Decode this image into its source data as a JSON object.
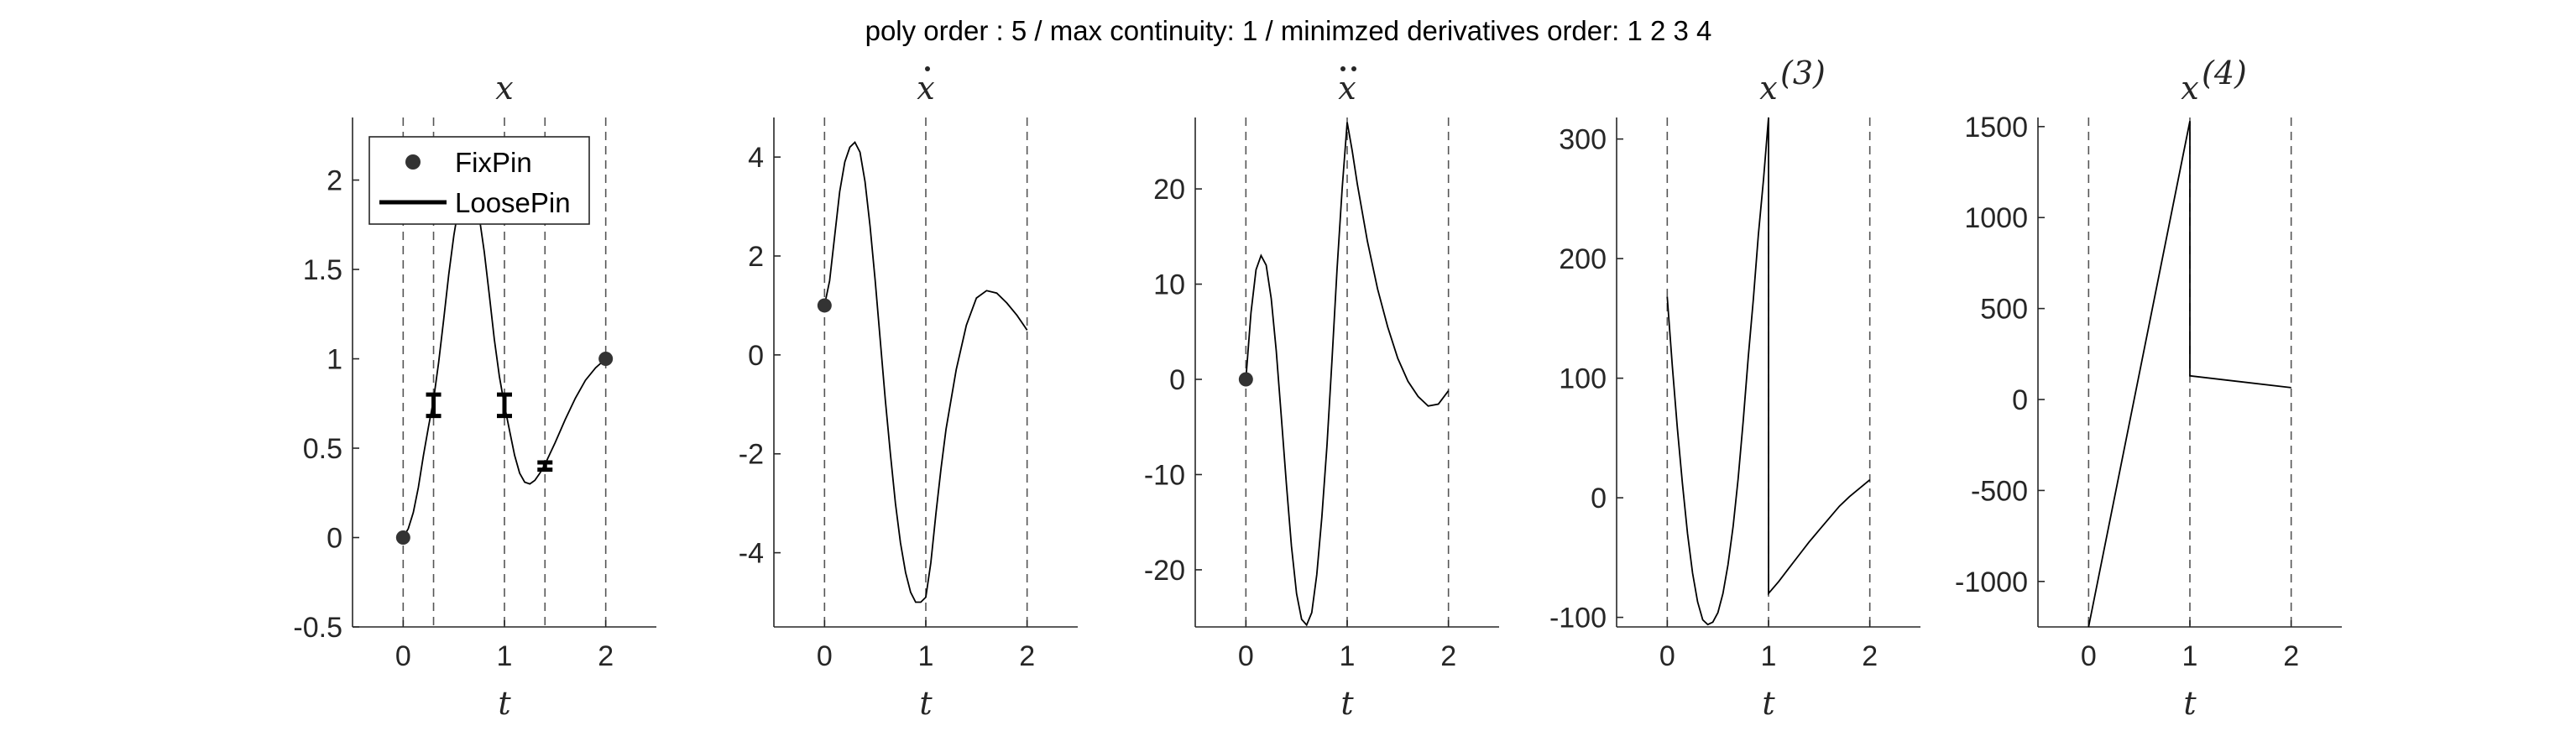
{
  "figure": {
    "suptitle": "poly order : 5 / max continuity: 1 / minimzed derivatives order: 1  2  3  4"
  },
  "legend": {
    "entries": [
      {
        "label": "FixPin",
        "marker": "dot"
      },
      {
        "label": "LoosePin",
        "marker": "line"
      }
    ]
  },
  "colors": {
    "curve": "#000000",
    "marker": "#333333",
    "axis": "#262626",
    "guide_line": "#555555"
  },
  "chart_data": [
    {
      "type": "line",
      "title": "x",
      "title_sup": "",
      "title_accent": "",
      "xlabel": "t",
      "xlim": [
        -0.5,
        2.5
      ],
      "ylim": [
        -0.5,
        2.35
      ],
      "xticks": [
        0,
        1,
        2
      ],
      "xtick_labels": [
        "0",
        "1",
        "2"
      ],
      "yticks": [
        -0.5,
        0,
        0.5,
        1,
        1.5,
        2
      ],
      "ytick_labels": [
        "-0.5",
        "0",
        "0.5",
        "1",
        "1.5",
        "2"
      ],
      "vlines": [
        0,
        0.3,
        1,
        1.4,
        2
      ],
      "series": [
        {
          "x": [
            0,
            0.05,
            0.1,
            0.15,
            0.2,
            0.25,
            0.3,
            0.35,
            0.4,
            0.45,
            0.5,
            0.55,
            0.6,
            0.65,
            0.7,
            0.75,
            0.8,
            0.85,
            0.9,
            0.95,
            1.0,
            1.05,
            1.1,
            1.15,
            1.2,
            1.25,
            1.3,
            1.35,
            1.4,
            1.5,
            1.6,
            1.7,
            1.8,
            1.9,
            2.0
          ],
          "y": [
            0,
            0.05,
            0.14,
            0.28,
            0.46,
            0.62,
            0.77,
            0.98,
            1.22,
            1.47,
            1.69,
            1.86,
            1.97,
            2.0,
            1.94,
            1.8,
            1.6,
            1.36,
            1.11,
            0.9,
            0.74,
            0.6,
            0.46,
            0.36,
            0.31,
            0.3,
            0.32,
            0.36,
            0.41,
            0.53,
            0.66,
            0.78,
            0.88,
            0.95,
            1.0
          ]
        }
      ],
      "fix_pins": [
        {
          "x": 0,
          "y": 0
        },
        {
          "x": 2,
          "y": 1
        }
      ],
      "loose_pins": [
        {
          "x": 0.3,
          "low": 0.68,
          "high": 0.8
        },
        {
          "x": 1.0,
          "low": 0.68,
          "high": 0.8
        },
        {
          "x": 1.4,
          "low": 0.38,
          "high": 0.42
        }
      ]
    },
    {
      "type": "line",
      "title": "x",
      "title_sup": "",
      "title_accent": "dot",
      "xlabel": "t",
      "xlim": [
        -0.5,
        2.5
      ],
      "ylim": [
        -5.5,
        4.8
      ],
      "xticks": [
        0,
        1,
        2
      ],
      "xtick_labels": [
        "0",
        "1",
        "2"
      ],
      "yticks": [
        -4,
        -2,
        0,
        2,
        4
      ],
      "ytick_labels": [
        "-4",
        "-2",
        "0",
        "2",
        "4"
      ],
      "vlines": [
        0,
        1,
        2
      ],
      "series": [
        {
          "x": [
            0,
            0.05,
            0.1,
            0.15,
            0.2,
            0.25,
            0.3,
            0.35,
            0.4,
            0.45,
            0.5,
            0.55,
            0.6,
            0.65,
            0.7,
            0.75,
            0.8,
            0.85,
            0.9,
            0.95,
            1.0,
            1.05,
            1.1,
            1.15,
            1.2,
            1.3,
            1.4,
            1.5,
            1.6,
            1.7,
            1.8,
            1.9,
            2.0
          ],
          "y": [
            1.0,
            1.5,
            2.4,
            3.3,
            3.9,
            4.2,
            4.3,
            4.1,
            3.5,
            2.6,
            1.5,
            0.3,
            -0.9,
            -2.0,
            -3.0,
            -3.8,
            -4.4,
            -4.8,
            -5.0,
            -5.0,
            -4.9,
            -4.2,
            -3.2,
            -2.3,
            -1.5,
            -0.3,
            0.6,
            1.15,
            1.3,
            1.25,
            1.05,
            0.8,
            0.5
          ]
        }
      ],
      "fix_pins": [
        {
          "x": 0,
          "y": 1.0
        }
      ],
      "loose_pins": []
    },
    {
      "type": "line",
      "title": "x",
      "title_sup": "",
      "title_accent": "ddot",
      "xlabel": "t",
      "xlim": [
        -0.5,
        2.5
      ],
      "ylim": [
        -26,
        27.5
      ],
      "xticks": [
        0,
        1,
        2
      ],
      "xtick_labels": [
        "0",
        "1",
        "2"
      ],
      "yticks": [
        -20,
        -10,
        0,
        10,
        20
      ],
      "ytick_labels": [
        "-20",
        "-10",
        "0",
        "10",
        "20"
      ],
      "vlines": [
        0,
        1,
        2
      ],
      "series": [
        {
          "x": [
            0,
            0.05,
            0.1,
            0.15,
            0.2,
            0.25,
            0.3,
            0.35,
            0.4,
            0.45,
            0.5,
            0.55,
            0.6,
            0.65,
            0.7,
            0.75,
            0.8,
            0.85,
            0.9,
            0.95,
            1.0,
            1.0,
            1.05,
            1.1,
            1.2,
            1.3,
            1.4,
            1.5,
            1.6,
            1.7,
            1.8,
            1.9,
            2.0
          ],
          "y": [
            0,
            7,
            11.5,
            13,
            12,
            8.5,
            3,
            -4,
            -11,
            -17.5,
            -22.5,
            -25.2,
            -25.8,
            -24.5,
            -20.5,
            -14.5,
            -7,
            2,
            11.5,
            20,
            27,
            27,
            24,
            20.5,
            14.5,
            9.5,
            5.5,
            2.2,
            -0.2,
            -1.8,
            -2.8,
            -2.6,
            -1.2
          ]
        }
      ],
      "fix_pins": [
        {
          "x": 0,
          "y": 0
        }
      ],
      "loose_pins": []
    },
    {
      "type": "line",
      "title": "x",
      "title_sup": "(3)",
      "title_accent": "",
      "xlabel": "t",
      "xlim": [
        -0.5,
        2.5
      ],
      "ylim": [
        -108,
        318
      ],
      "xticks": [
        0,
        1,
        2
      ],
      "xtick_labels": [
        "0",
        "1",
        "2"
      ],
      "yticks": [
        -100,
        0,
        100,
        200,
        300
      ],
      "ytick_labels": [
        "-100",
        "0",
        "100",
        "200",
        "300"
      ],
      "vlines": [
        0,
        1,
        2
      ],
      "series": [
        {
          "x": [
            0,
            0.05,
            0.1,
            0.15,
            0.2,
            0.25,
            0.3,
            0.35,
            0.4,
            0.45,
            0.5,
            0.55,
            0.6,
            0.65,
            0.7,
            0.75,
            0.8,
            0.85,
            0.9,
            0.95,
            1.0,
            1.0,
            1.1,
            1.2,
            1.3,
            1.4,
            1.5,
            1.6,
            1.7,
            1.8,
            1.9,
            2.0
          ],
          "y": [
            168,
            110,
            58,
            12,
            -30,
            -63,
            -87,
            -102,
            -106,
            -104,
            -96,
            -80,
            -56,
            -24,
            16,
            64,
            118,
            166,
            220,
            266,
            318,
            -80,
            -70,
            -59,
            -48,
            -37,
            -27,
            -17,
            -7,
            1,
            8,
            15
          ]
        }
      ],
      "fix_pins": [],
      "loose_pins": []
    },
    {
      "type": "line",
      "title": "x",
      "title_sup": "(4)",
      "title_accent": "",
      "xlabel": "t",
      "xlim": [
        -0.5,
        2.5
      ],
      "ylim": [
        -1250,
        1550
      ],
      "xticks": [
        0,
        1,
        2
      ],
      "xtick_labels": [
        "0",
        "1",
        "2"
      ],
      "yticks": [
        -1000,
        -500,
        0,
        500,
        1000,
        1500
      ],
      "ytick_labels": [
        "-1000",
        "-500",
        "0",
        "500",
        "1000",
        "1500"
      ],
      "vlines": [
        0,
        1,
        2
      ],
      "series": [
        {
          "x": [
            0,
            1.0,
            1.0,
            2.0
          ],
          "y": [
            -1250,
            1530,
            130,
            65
          ]
        }
      ],
      "fix_pins": [],
      "loose_pins": []
    }
  ]
}
